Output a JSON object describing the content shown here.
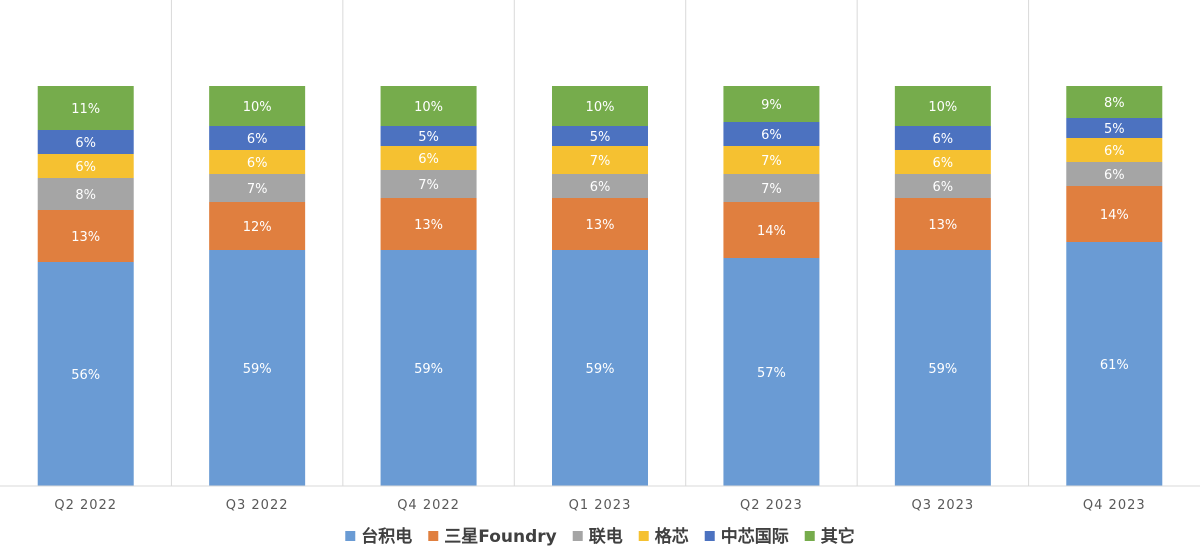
{
  "chart_data": {
    "type": "bar",
    "stacked": true,
    "categories": [
      "Q2 2022",
      "Q3 2022",
      "Q4 2022",
      "Q1 2023",
      "Q2 2023",
      "Q3 2023",
      "Q4 2023"
    ],
    "series": [
      {
        "name": "台积电",
        "color": "#6a9bd4",
        "values": [
          56,
          59,
          59,
          59,
          57,
          59,
          61
        ]
      },
      {
        "name": "三星Foundry",
        "color": "#e07f3f",
        "values": [
          13,
          12,
          13,
          13,
          14,
          13,
          14
        ]
      },
      {
        "name": "联电",
        "color": "#a5a5a5",
        "values": [
          8,
          7,
          7,
          6,
          7,
          6,
          6
        ]
      },
      {
        "name": "格芯",
        "color": "#f5c131",
        "values": [
          6,
          6,
          6,
          7,
          7,
          6,
          6
        ]
      },
      {
        "name": "中芯国际",
        "color": "#4c72c0",
        "values": [
          6,
          6,
          5,
          5,
          6,
          6,
          5
        ]
      },
      {
        "name": "其它",
        "color": "#76ac4c",
        "values": [
          11,
          10,
          10,
          10,
          9,
          10,
          8
        ]
      }
    ],
    "value_suffix": "%",
    "ylim": [
      0,
      100
    ],
    "legend_position": "bottom",
    "grid": false
  }
}
